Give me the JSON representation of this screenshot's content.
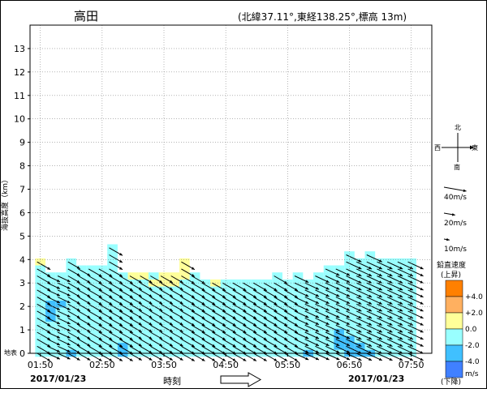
{
  "header": {
    "station": "高田",
    "location": "(北緯37.11°,東経138.25°,標高 13m)"
  },
  "axes": {
    "ylabel": "海抜高度（km）",
    "ground_label": "地表",
    "xlabel": "時刻",
    "start_date": "2017/01/23",
    "end_date": "2017/01/23"
  },
  "compass": {
    "north": "北",
    "south": "南",
    "east": "東",
    "west": "西"
  },
  "wind_scale": [
    {
      "label": "40m/s",
      "speed": 40
    },
    {
      "label": "20m/s",
      "speed": 20
    },
    {
      "label": "10m/s",
      "speed": 10
    }
  ],
  "legend": {
    "title": "鉛直速度",
    "top_note": "(上昇)",
    "bottom_note": "(下降)",
    "unit": "m/s",
    "bins": [
      {
        "color": "#ff8000",
        "label": "+4.0"
      },
      {
        "color": "#ffb060",
        "label": "+2.0"
      },
      {
        "color": "#ffff99",
        "label": "0.0"
      },
      {
        "color": "#99ffff",
        "label": "-2.0"
      },
      {
        "color": "#40c0ff",
        "label": "-4.0"
      },
      {
        "color": "#4080ff",
        "label": ""
      }
    ]
  },
  "chart_data": {
    "type": "heatmap",
    "title": "高田",
    "xlabel": "時刻",
    "ylabel": "海抜高度（km）",
    "x_ticks": [
      "01:50",
      "02:50",
      "03:50",
      "04:50",
      "05:50",
      "06:50",
      "07:50"
    ],
    "y_ticks": [
      0,
      1,
      2,
      3,
      4,
      5,
      6,
      7,
      8,
      9,
      10,
      11,
      12,
      13
    ],
    "ylim": [
      0,
      14
    ],
    "x_range": [
      "01:40",
      "08:10"
    ],
    "time_step_min": 10,
    "height_step_km": 0.3,
    "grid": true,
    "columns": [
      {
        "time": "01:50",
        "top": 3.9,
        "dir": 300,
        "speed": 20
      },
      {
        "time": "02:00",
        "top": 3.3,
        "dir": 295,
        "speed": 18
      },
      {
        "time": "02:10",
        "top": 3.3,
        "dir": 295,
        "speed": 18
      },
      {
        "time": "02:20",
        "top": 3.9,
        "dir": 300,
        "speed": 18
      },
      {
        "time": "02:30",
        "top": 3.6,
        "dir": 300,
        "speed": 18
      },
      {
        "time": "02:40",
        "top": 3.6,
        "dir": 300,
        "speed": 20
      },
      {
        "time": "02:50",
        "top": 3.6,
        "dir": 300,
        "speed": 20
      },
      {
        "time": "03:00",
        "top": 4.5,
        "dir": 300,
        "speed": 20
      },
      {
        "time": "03:10",
        "top": 3.3,
        "dir": 300,
        "speed": 20
      },
      {
        "time": "03:20",
        "top": 3.3,
        "dir": 300,
        "speed": 18
      },
      {
        "time": "03:30",
        "top": 3.3,
        "dir": 300,
        "speed": 18
      },
      {
        "time": "03:40",
        "top": 3.3,
        "dir": 300,
        "speed": 18
      },
      {
        "time": "03:50",
        "top": 3.3,
        "dir": 300,
        "speed": 18
      },
      {
        "time": "04:00",
        "top": 3.3,
        "dir": 300,
        "speed": 18
      },
      {
        "time": "04:10",
        "top": 3.9,
        "dir": 300,
        "speed": 20
      },
      {
        "time": "04:20",
        "top": 3.3,
        "dir": 300,
        "speed": 20
      },
      {
        "time": "04:30",
        "top": 3.0,
        "dir": 300,
        "speed": 20
      },
      {
        "time": "04:40",
        "top": 3.0,
        "dir": 300,
        "speed": 20
      },
      {
        "time": "04:50",
        "top": 3.0,
        "dir": 300,
        "speed": 20
      },
      {
        "time": "05:00",
        "top": 3.0,
        "dir": 300,
        "speed": 20
      },
      {
        "time": "05:10",
        "top": 3.0,
        "dir": 300,
        "speed": 20
      },
      {
        "time": "05:20",
        "top": 3.0,
        "dir": 300,
        "speed": 20
      },
      {
        "time": "05:30",
        "top": 3.0,
        "dir": 300,
        "speed": 20
      },
      {
        "time": "05:40",
        "top": 3.3,
        "dir": 300,
        "speed": 20
      },
      {
        "time": "05:50",
        "top": 3.0,
        "dir": 300,
        "speed": 20
      },
      {
        "time": "06:00",
        "top": 3.3,
        "dir": 295,
        "speed": 20
      },
      {
        "time": "06:10",
        "top": 3.0,
        "dir": 295,
        "speed": 20
      },
      {
        "time": "06:20",
        "top": 3.3,
        "dir": 295,
        "speed": 20
      },
      {
        "time": "06:30",
        "top": 3.6,
        "dir": 295,
        "speed": 20
      },
      {
        "time": "06:40",
        "top": 3.6,
        "dir": 295,
        "speed": 20
      },
      {
        "time": "06:50",
        "top": 4.2,
        "dir": 295,
        "speed": 22
      },
      {
        "time": "07:00",
        "top": 3.9,
        "dir": 295,
        "speed": 22
      },
      {
        "time": "07:10",
        "top": 4.2,
        "dir": 295,
        "speed": 22
      },
      {
        "time": "07:20",
        "top": 3.9,
        "dir": 295,
        "speed": 22
      },
      {
        "time": "07:30",
        "top": 3.9,
        "dir": 295,
        "speed": 22
      },
      {
        "time": "07:40",
        "top": 3.9,
        "dir": 295,
        "speed": 22
      },
      {
        "time": "07:50",
        "top": 3.9,
        "dir": 295,
        "speed": 22
      }
    ],
    "cells": [
      {
        "time": "01:50",
        "h": 3.9,
        "w": 0.5
      },
      {
        "time": "02:00",
        "h": 2.1,
        "w": -2.5
      },
      {
        "time": "02:00",
        "h": 1.8,
        "w": -2.5
      },
      {
        "time": "02:00",
        "h": 1.5,
        "w": -2.5
      },
      {
        "time": "02:10",
        "h": 2.1,
        "w": -2.5
      },
      {
        "time": "02:20",
        "h": 0.0,
        "w": -2.5
      },
      {
        "time": "03:10",
        "h": 0.3,
        "w": -2.5
      },
      {
        "time": "03:10",
        "h": 0.0,
        "w": -2.5
      },
      {
        "time": "03:20",
        "h": 3.3,
        "w": 0.5
      },
      {
        "time": "03:30",
        "h": 3.3,
        "w": 0.5
      },
      {
        "time": "03:40",
        "h": 3.0,
        "w": 0.5
      },
      {
        "time": "03:50",
        "h": 3.3,
        "w": 0.5
      },
      {
        "time": "03:50",
        "h": 3.0,
        "w": 0.5
      },
      {
        "time": "04:00",
        "h": 3.3,
        "w": 0.5
      },
      {
        "time": "04:00",
        "h": 3.0,
        "w": 0.5
      },
      {
        "time": "04:10",
        "h": 3.9,
        "w": 0.5
      },
      {
        "time": "04:10",
        "h": 3.6,
        "w": 0.5
      },
      {
        "time": "04:10",
        "h": 3.3,
        "w": 0.5
      },
      {
        "time": "04:40",
        "h": 3.0,
        "w": 0.5
      },
      {
        "time": "06:10",
        "h": 3.3,
        "w": 0.5
      },
      {
        "time": "06:10",
        "h": 0.0,
        "w": -2.5
      },
      {
        "time": "06:40",
        "h": 0.9,
        "w": -2.5
      },
      {
        "time": "06:40",
        "h": 0.6,
        "w": -2.5
      },
      {
        "time": "06:40",
        "h": 0.3,
        "w": -2.5
      },
      {
        "time": "06:50",
        "h": 0.6,
        "w": -2.5
      },
      {
        "time": "06:50",
        "h": 0.3,
        "w": -2.5
      },
      {
        "time": "06:50",
        "h": 0.0,
        "w": -2.5
      },
      {
        "time": "07:00",
        "h": 0.3,
        "w": -2.5
      },
      {
        "time": "07:00",
        "h": 0.0,
        "w": -2.5
      },
      {
        "time": "07:10",
        "h": 0.0,
        "w": -2.5
      }
    ]
  }
}
